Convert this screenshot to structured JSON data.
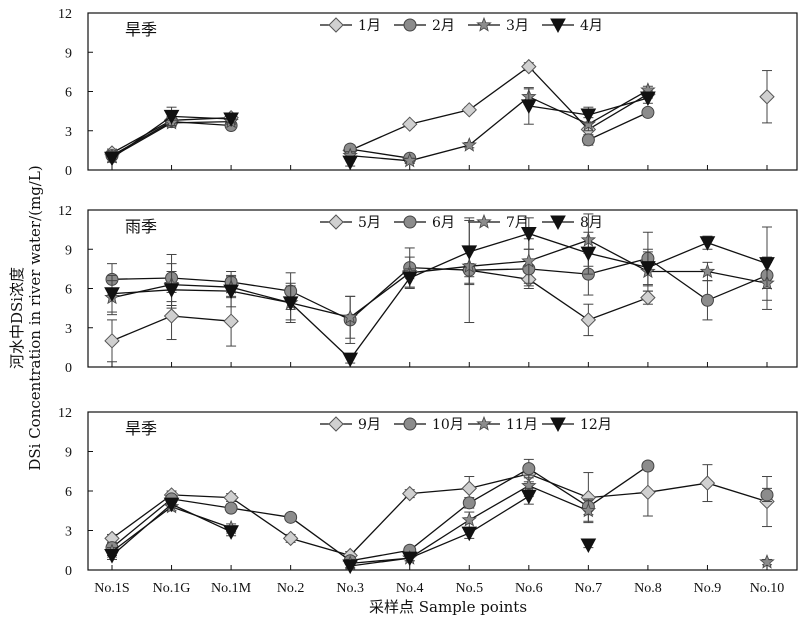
{
  "chart_data": {
    "type": "line",
    "ylabel": "河水中DSi浓度\nDSi Concentration in river water/(mg/L)",
    "xlabel": "采样点 Sample points",
    "categories": [
      "No.1S",
      "No.1G",
      "No.1M",
      "No.2",
      "No.3",
      "No.4",
      "No.5",
      "No.6",
      "No.7",
      "No.8",
      "No.9",
      "No.10"
    ],
    "ylim": [
      0,
      12
    ],
    "yticks": [
      0,
      3,
      6,
      9,
      12
    ],
    "panels": [
      {
        "season_label": "旱季",
        "legend_position": "top",
        "series": [
          {
            "name": "1月",
            "marker": "diamond",
            "fill": "#d0d0d0",
            "segments": [
              {
                "x": [
                  0,
                  1,
                  2
                ],
                "y": [
                  1.3,
                  3.8,
                  4.0
                ],
                "err": [
                  0.3,
                  0.3,
                  0.2
                ]
              },
              {
                "x": [
                  4,
                  5,
                  6,
                  7,
                  8,
                  9
                ],
                "y": [
                  1.5,
                  3.5,
                  4.6,
                  7.9,
                  3.1,
                  5.8
                ],
                "err": [
                  0.3,
                  0.2,
                  0.2,
                  0.3,
                  0.5,
                  0.3
                ]
              },
              {
                "x": [
                  11
                ],
                "y": [
                  5.6
                ],
                "err": [
                  2.0
                ]
              }
            ]
          },
          {
            "name": "2月",
            "marker": "circle",
            "fill": "#8c8c8c",
            "segments": [
              {
                "x": [
                  0,
                  1,
                  2
                ],
                "y": [
                  1.1,
                  3.7,
                  3.4
                ],
                "err": [
                  0.3,
                  0.3,
                  0.2
                ]
              },
              {
                "x": [
                  4,
                  5
                ],
                "y": [
                  1.6,
                  0.9
                ],
                "err": [
                  0.3,
                  0.2
                ]
              },
              {
                "x": [
                  8,
                  9
                ],
                "y": [
                  2.3,
                  4.4
                ],
                "err": [
                  0.4,
                  0.3
                ]
              }
            ]
          },
          {
            "name": "3月",
            "marker": "star",
            "fill": "#8c8c8c",
            "segments": [
              {
                "x": [
                  0,
                  1,
                  2
                ],
                "y": [
                  1.0,
                  3.6,
                  3.7
                ],
                "err": [
                  0.4,
                  0.3,
                  0.2
                ]
              },
              {
                "x": [
                  4,
                  5,
                  6,
                  7,
                  8,
                  9
                ],
                "y": [
                  1.1,
                  0.7,
                  1.9,
                  5.6,
                  3.5,
                  6.1
                ],
                "err": [
                  0.3,
                  0.2,
                  0.2,
                  0.6,
                  0.5,
                  0.3
                ]
              }
            ]
          },
          {
            "name": "4月",
            "marker": "triangle-down",
            "fill": "#111111",
            "segments": [
              {
                "x": [
                  0,
                  1,
                  2
                ],
                "y": [
                  0.9,
                  4.1,
                  3.9
                ],
                "err": [
                  0.3,
                  0.7,
                  0.3
                ]
              },
              {
                "x": [
                  4
                ],
                "y": [
                  0.6
                ],
                "err": [
                  0.3
                ]
              },
              {
                "x": [
                  7,
                  8,
                  9
                ],
                "y": [
                  4.9,
                  4.2,
                  5.5
                ],
                "err": [
                  1.4,
                  0.6,
                  0.4
                ]
              }
            ]
          }
        ]
      },
      {
        "season_label": "雨季",
        "legend_position": "top",
        "series": [
          {
            "name": "5月",
            "marker": "diamond",
            "fill": "#d0d0d0",
            "segments": [
              {
                "x": [
                  0,
                  1,
                  2
                ],
                "y": [
                  2.0,
                  3.9,
                  3.5
                ],
                "err": [
                  1.6,
                  1.8,
                  1.9
                ]
              },
              {
                "x": [
                  6,
                  7,
                  8,
                  9
                ],
                "y": [
                  7.4,
                  6.7,
                  3.6,
                  5.3
                ],
                "err": [
                  0.5,
                  0.5,
                  1.2,
                  0.5
                ]
              }
            ]
          },
          {
            "name": "6月",
            "marker": "circle",
            "fill": "#8c8c8c",
            "segments": [
              {
                "x": [
                  0,
                  1,
                  2,
                  3,
                  4,
                  5,
                  6,
                  7,
                  8,
                  9,
                  10,
                  11
                ],
                "y": [
                  6.7,
                  6.8,
                  6.5,
                  5.8,
                  3.6,
                  7.6,
                  7.4,
                  7.5,
                  7.1,
                  8.3,
                  5.1,
                  7.0
                ],
                "err": [
                  1.2,
                  1.8,
                  0.8,
                  1.4,
                  1.8,
                  1.5,
                  4.0,
                  1.5,
                  1.6,
                  2.0,
                  1.5,
                  1.0
                ]
              }
            ]
          },
          {
            "name": "7月",
            "marker": "star",
            "fill": "#8c8c8c",
            "segments": [
              {
                "x": [
                  0,
                  1,
                  2,
                  3,
                  4,
                  5,
                  6,
                  7,
                  8,
                  9,
                  10,
                  11
                ],
                "y": [
                  5.3,
                  6.3,
                  6.1,
                  4.9,
                  3.8,
                  7.2,
                  7.7,
                  8.1,
                  9.7,
                  7.3,
                  7.3,
                  6.4
                ],
                "err": [
                  1.3,
                  1.6,
                  0.8,
                  1.5,
                  1.6,
                  1.2,
                  1.4,
                  1.7,
                  2.0,
                  1.5,
                  0.7,
                  2.0
                ]
              }
            ]
          },
          {
            "name": "8月",
            "marker": "triangle-down",
            "fill": "#111111",
            "segments": [
              {
                "x": [
                  0,
                  1,
                  2,
                  3,
                  4,
                  5,
                  6,
                  7,
                  8,
                  9,
                  10,
                  11
                ],
                "y": [
                  5.6,
                  5.9,
                  5.8,
                  4.9,
                  0.6,
                  6.8,
                  8.8,
                  10.2,
                  8.7,
                  7.6,
                  9.5,
                  7.9
                ],
                "err": [
                  1.4,
                  1.4,
                  1.2,
                  1.3,
                  0.3,
                  0.7,
                  2.4,
                  1.2,
                  1.6,
                  1.4,
                  0.5,
                  2.8
                ]
              }
            ]
          }
        ]
      },
      {
        "season_label": "旱季",
        "legend_position": "top",
        "series": [
          {
            "name": "9月",
            "marker": "diamond",
            "fill": "#d0d0d0",
            "segments": [
              {
                "x": [
                  0,
                  1,
                  2,
                  3,
                  4,
                  5,
                  6,
                  7,
                  8,
                  9,
                  10,
                  11
                ],
                "y": [
                  2.4,
                  5.7,
                  5.5,
                  2.4,
                  1.1,
                  5.8,
                  6.2,
                  7.3,
                  5.5,
                  5.9,
                  6.6,
                  5.2
                ],
                "err": [
                  0.3,
                  0.3,
                  0.3,
                  0.3,
                  0.3,
                  0.3,
                  0.9,
                  0.6,
                  1.9,
                  1.8,
                  1.4,
                  1.9
                ]
              }
            ]
          },
          {
            "name": "10月",
            "marker": "circle",
            "fill": "#8c8c8c",
            "segments": [
              {
                "x": [
                  0,
                  1,
                  2,
                  3,
                  4,
                  5,
                  6,
                  7,
                  8,
                  9
                ],
                "y": [
                  1.7,
                  5.4,
                  4.7,
                  4.0,
                  0.7,
                  1.5,
                  5.1,
                  7.7,
                  4.8,
                  7.9
                ],
                "err": [
                  0.3,
                  0.3,
                  0.3,
                  0.2,
                  0.3,
                  0.3,
                  0.4,
                  0.7,
                  0.6,
                  0.3
                ]
              },
              {
                "x": [
                  11
                ],
                "y": [
                  5.7
                ],
                "err": [
                  0.5
                ]
              }
            ]
          },
          {
            "name": "11月",
            "marker": "star",
            "fill": "#8c8c8c",
            "segments": [
              {
                "x": [
                  0,
                  1,
                  2
                ],
                "y": [
                  1.4,
                  4.8,
                  3.2
                ],
                "err": [
                  0.3,
                  0.3,
                  0.3
                ]
              },
              {
                "x": [
                  4,
                  5,
                  6,
                  7,
                  8
                ],
                "y": [
                  0.5,
                  0.9,
                  3.8,
                  6.4,
                  4.5
                ],
                "err": [
                  0.3,
                  0.2,
                  0.6,
                  0.8,
                  0.8
                ]
              },
              {
                "x": [
                  11
                ],
                "y": [
                  0.6
                ],
                "err": [
                  0.2
                ]
              }
            ]
          },
          {
            "name": "12月",
            "marker": "triangle-down",
            "fill": "#111111",
            "segments": [
              {
                "x": [
                  0,
                  1,
                  2
                ],
                "y": [
                  1.1,
                  5.0,
                  2.9
                ],
                "err": [
                  0.3,
                  0.3,
                  0.3
                ]
              },
              {
                "x": [
                  4,
                  5,
                  6,
                  7
                ],
                "y": [
                  0.3,
                  0.9,
                  2.8,
                  5.6
                ],
                "err": [
                  0.2,
                  0.2,
                  0.4,
                  0.6
                ]
              },
              {
                "x": [
                  8
                ],
                "y": [
                  1.9
                ],
                "err": [
                  0.2
                ]
              }
            ]
          }
        ]
      }
    ]
  }
}
